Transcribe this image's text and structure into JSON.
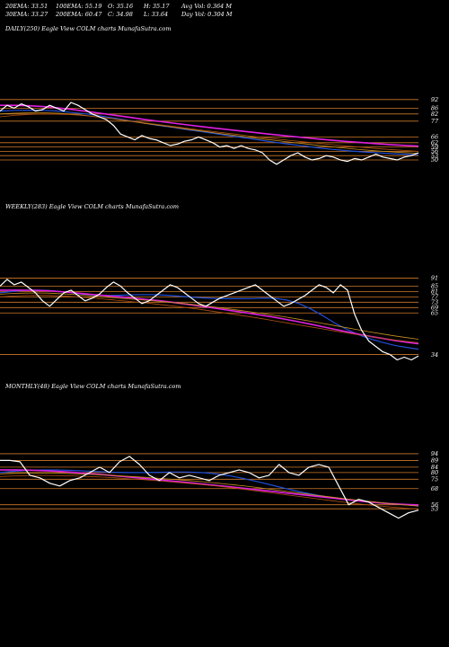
{
  "header": {
    "row1": [
      {
        "label": "20EMA: 33.51"
      },
      {
        "label": "100EMA: 55.19"
      },
      {
        "label": "O: 35.16"
      },
      {
        "label": "H: 35.17"
      },
      {
        "label": "Avg Vol: 0.364  M"
      }
    ],
    "row2": [
      {
        "label": "30EMA: 33.27"
      },
      {
        "label": "200EMA: 60.47"
      },
      {
        "label": "C: 34.98"
      },
      {
        "label": "L: 33.64"
      },
      {
        "label": "Day Vol: 0.304  M"
      }
    ]
  },
  "panels": {
    "daily": {
      "label": "DAILY(250) Eagle  View  COLM charts MunafaSutra.com"
    },
    "weekly": {
      "label": "WEEKLY(283) Eagle  View  COLM charts MunafaSutra.com"
    },
    "monthly": {
      "label": "MONTHLY(48) Eagle  View  COLM charts MunafaSutra.com"
    }
  },
  "colors": {
    "background": "#000000",
    "price": "#ffffff",
    "ema_short": "#1e4fd8",
    "ema_long": "#e020e0",
    "ma_gold": "#c89020",
    "ma_brown": "#b05010",
    "level_line": "#d07828"
  },
  "chart_data": [
    {
      "type": "line",
      "title": "DAILY(250)",
      "ylim": [
        30,
        100
      ],
      "yticks": [
        92,
        86,
        82,
        77,
        66,
        62,
        59,
        56,
        53,
        50
      ],
      "series": [
        {
          "name": "price",
          "values": [
            84,
            88,
            86,
            89,
            87,
            84,
            85,
            88,
            86,
            84,
            90,
            88,
            85,
            82,
            80,
            78,
            74,
            68,
            66,
            64,
            67,
            65,
            64,
            62,
            60,
            61,
            63,
            64,
            66,
            64,
            62,
            59,
            60,
            58,
            60,
            58,
            57,
            55,
            50,
            47,
            50,
            53,
            55,
            52,
            50,
            51,
            53,
            52,
            50,
            49,
            51,
            50,
            52,
            54,
            52,
            51,
            50,
            52,
            53,
            55
          ]
        },
        {
          "values": [
            84,
            84.5,
            84.6,
            84.5,
            84,
            83,
            82,
            80.5,
            79,
            77.3,
            75.6,
            74,
            72.6,
            71,
            69.7,
            68.2,
            66.7,
            65.3,
            63.8,
            62.4,
            61,
            59.8,
            58.5,
            57.4,
            56.5,
            55.7,
            55.1,
            54.5,
            54,
            53.6
          ]
        },
        {
          "values": [
            88,
            88,
            87.7,
            87.1,
            86.2,
            85.1,
            83.8,
            82.4,
            81,
            79.6,
            78.2,
            76.9,
            75.6,
            74.4,
            73.2,
            72,
            70.9,
            69.8,
            68.7,
            67.6,
            66.6,
            65.6,
            64.6,
            63.7,
            62.9,
            62.1,
            61.4,
            60.7,
            60.1,
            59.6
          ]
        },
        {
          "values": [
            82,
            82.5,
            82.8,
            82.8,
            82.5,
            81.8,
            80.8,
            79.6,
            78.4,
            77,
            75.5,
            74.1,
            72.8,
            71.4,
            70.1,
            68.7,
            67.4,
            66.2,
            64.9,
            63.7,
            62.5,
            61.3,
            60.2,
            59.1,
            58.1,
            57.2,
            56.4,
            55.7,
            55.1,
            54.6
          ]
        },
        {
          "values": [
            80,
            81,
            81.7,
            82,
            81.9,
            81.5,
            80.7,
            79.7,
            78.5,
            77.2,
            75.9,
            74.6,
            73.3,
            72,
            70.7,
            69.5,
            68.3,
            67.1,
            65.9,
            64.8,
            63.7,
            62.6,
            61.6,
            60.6,
            59.7,
            58.8,
            58,
            57.3,
            56.6,
            56
          ]
        }
      ]
    },
    {
      "type": "line",
      "title": "WEEKLY(283)",
      "ylim": [
        25,
        100
      ],
      "yticks": [
        91,
        85,
        81,
        77,
        73,
        69,
        65,
        34
      ],
      "series": [
        {
          "name": "price",
          "values": [
            85,
            90,
            86,
            88,
            84,
            80,
            74,
            70,
            75,
            80,
            82,
            78,
            74,
            76,
            79,
            84,
            88,
            85,
            80,
            76,
            72,
            74,
            78,
            82,
            86,
            84,
            80,
            76,
            72,
            70,
            73,
            76,
            78,
            80,
            82,
            84,
            86,
            82,
            78,
            74,
            70,
            72,
            75,
            78,
            82,
            86,
            84,
            80,
            86,
            82,
            64,
            52,
            44,
            40,
            36,
            34,
            30,
            32,
            30,
            33
          ]
        },
        {
          "values": [
            80,
            81,
            81.8,
            82,
            81.8,
            81,
            80,
            79,
            78.3,
            78,
            78.2,
            78.5,
            78.7,
            78.6,
            78.2,
            77.5,
            76.8,
            76.2,
            75.8,
            75.6,
            75.6,
            75.7,
            76,
            75.9,
            74.6,
            72,
            68,
            63,
            57.5,
            52.8,
            48.8,
            45.6,
            43,
            40.9,
            39.3,
            38
          ]
        },
        {
          "values": [
            82,
            82,
            82,
            81.8,
            81.5,
            80.9,
            80.2,
            79.4,
            78.6,
            77.8,
            77,
            76.2,
            75.3,
            74.4,
            73.4,
            72.3,
            71.1,
            69.8,
            68.5,
            67.2,
            65.9,
            64.6,
            63.2,
            61.7,
            60.1,
            58.4,
            56.6,
            54.7,
            52.8,
            51,
            49.2,
            47.5,
            46,
            44.5,
            43.2,
            42
          ]
        },
        {
          "values": [
            79,
            79.5,
            79.8,
            79.9,
            79.8,
            79.4,
            78.9,
            78.2,
            77.5,
            76.7,
            76,
            75.3,
            74.6,
            73.9,
            73.1,
            72.3,
            71.4,
            70.4,
            69.3,
            68.2,
            67,
            65.8,
            64.5,
            63.2,
            61.8,
            60.3,
            58.8,
            57.2,
            55.6,
            54,
            52.4,
            50.8,
            49.3,
            47.9,
            46.6,
            45.4
          ]
        },
        {
          "values": [
            77,
            77.6,
            78,
            78.2,
            78.1,
            77.8,
            77.3,
            76.6,
            75.9,
            75.1,
            74.3,
            73.5,
            72.6,
            71.7,
            70.7,
            69.6,
            68.5,
            67.3,
            66,
            64.7,
            63.4,
            62,
            60.6,
            59.1,
            57.6,
            56.1,
            54.6,
            53.1,
            51.6,
            50.1,
            48.7,
            47.4,
            46.1,
            44.9,
            43.8,
            42.8
          ]
        }
      ]
    },
    {
      "type": "line",
      "title": "MONTHLY(48)",
      "ylim": [
        25,
        100
      ],
      "yticks": [
        94,
        89,
        84,
        80,
        75,
        68,
        56,
        53
      ],
      "series": [
        {
          "name": "price",
          "values": [
            89,
            89,
            88,
            78,
            76,
            72,
            70,
            74,
            76,
            80,
            84,
            80,
            88,
            92,
            86,
            78,
            74,
            80,
            76,
            78,
            76,
            74,
            78,
            80,
            82,
            80,
            76,
            78,
            86,
            80,
            78,
            84,
            86,
            84,
            70,
            56,
            60,
            58,
            54,
            50,
            46,
            50,
            52
          ]
        },
        {
          "values": [
            80,
            81,
            81.6,
            81.9,
            81.9,
            81.6,
            81.1,
            80.6,
            80.2,
            80,
            80,
            80.2,
            80.4,
            80.4,
            80,
            79,
            77.4,
            75.3,
            72.8,
            70.2,
            67.6,
            65.2,
            63.1,
            61.3,
            59.8,
            58.6,
            57.6,
            56.8,
            56.1,
            55.5
          ]
        },
        {
          "values": [
            82,
            82,
            81.8,
            81.4,
            80.9,
            80.2,
            79.4,
            78.5,
            77.6,
            76.6,
            75.6,
            74.6,
            73.6,
            72.6,
            71.5,
            70.4,
            69.3,
            68.2,
            67,
            65.8,
            64.6,
            63.4,
            62.2,
            61,
            59.8,
            58.7,
            57.7,
            56.9,
            56.3,
            55.9
          ]
        },
        {
          "values": [
            79,
            79.4,
            79.6,
            79.6,
            79.5,
            79.2,
            78.8,
            78.3,
            77.7,
            77.1,
            76.4,
            75.7,
            74.9,
            74.1,
            73.2,
            72.2,
            71.1,
            69.9,
            68.6,
            67.2,
            65.8,
            64.4,
            63,
            61.7,
            60.4,
            59.2,
            58,
            56.9,
            55.9,
            55
          ]
        },
        {
          "values": [
            77,
            77.5,
            77.8,
            77.9,
            77.8,
            77.5,
            77.1,
            76.6,
            76,
            75.3,
            74.6,
            73.8,
            72.9,
            72,
            71,
            69.9,
            68.7,
            67.4,
            66,
            64.6,
            63.2,
            61.8,
            60.4,
            59,
            57.7,
            56.5,
            55.4,
            54.4,
            53.5,
            52.7
          ]
        }
      ]
    }
  ]
}
